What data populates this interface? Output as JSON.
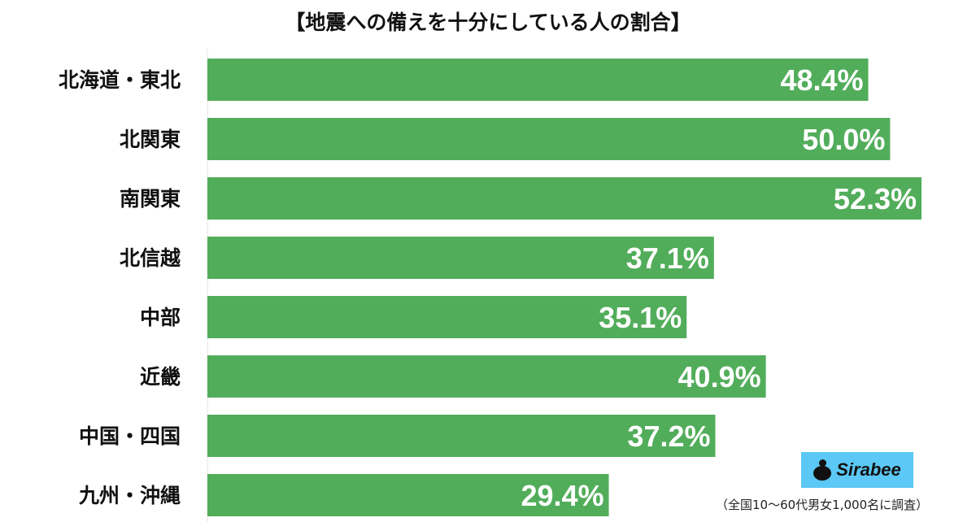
{
  "chart_data": {
    "type": "bar",
    "orientation": "horizontal",
    "title": "【地震への備えを十分にしている人の割合】",
    "categories": [
      "北海道・東北",
      "北関東",
      "南関東",
      "北信越",
      "中部",
      "近畿",
      "中国・四国",
      "九州・沖縄"
    ],
    "values": [
      48.4,
      50.0,
      52.3,
      37.1,
      35.1,
      40.9,
      37.2,
      29.4
    ],
    "value_labels": [
      "48.4%",
      "50.0%",
      "52.3%",
      "37.1%",
      "35.1%",
      "40.9%",
      "37.2%",
      "29.4%"
    ],
    "unit": "%",
    "xlim": [
      0,
      52.3
    ],
    "grid": false,
    "bar_color": "#52ad5b",
    "label_color": "#ffffff"
  },
  "logo": {
    "text": "Sirabee",
    "bg_color": "#5bc8f5"
  },
  "note": "（全国10〜60代男女1,000名に調査）"
}
